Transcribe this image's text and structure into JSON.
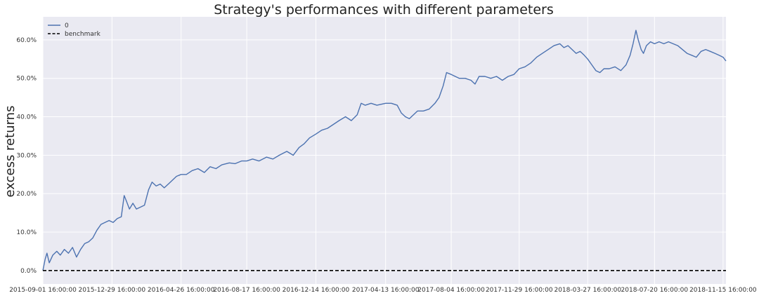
{
  "chart_data": {
    "type": "line",
    "title": "Strategy's performances with different parameters",
    "xlabel": "",
    "ylabel": "excess returns",
    "x_ticks": [
      "2015-09-01 16:00:00",
      "2015-12-29 16:00:00",
      "2016-04-26 16:00:00",
      "2016-08-17 16:00:00",
      "2016-12-14 16:00:00",
      "2017-04-13 16:00:00",
      "2017-08-04 16:00:00",
      "2017-11-29 16:00:00",
      "2018-03-27 16:00:00",
      "2018-07-20 16:00:00",
      "2018-11-15 16:00:00"
    ],
    "y_ticks": [
      "0.0%",
      "10.0%",
      "20.0%",
      "30.0%",
      "40.0%",
      "50.0%",
      "60.0%"
    ],
    "y_tick_values": [
      0,
      10,
      20,
      30,
      40,
      50,
      60
    ],
    "ylim": [
      -3.5,
      66
    ],
    "xlim": [
      "2015-09-01",
      "2018-11-20"
    ],
    "grid": true,
    "legend_position": "top-left",
    "background_color": "#EAEAF2",
    "series": [
      {
        "name": "0",
        "color": "#4C72B0",
        "style": "solid",
        "points": [
          [
            "2015-09-01",
            0.0
          ],
          [
            "2015-09-05",
            3.0
          ],
          [
            "2015-09-08",
            4.5
          ],
          [
            "2015-09-12",
            2.0
          ],
          [
            "2015-09-18",
            4.0
          ],
          [
            "2015-09-25",
            5.0
          ],
          [
            "2015-10-01",
            4.0
          ],
          [
            "2015-10-08",
            5.5
          ],
          [
            "2015-10-15",
            4.5
          ],
          [
            "2015-10-22",
            6.0
          ],
          [
            "2015-10-29",
            3.5
          ],
          [
            "2015-11-05",
            5.5
          ],
          [
            "2015-11-12",
            7.0
          ],
          [
            "2015-11-19",
            7.5
          ],
          [
            "2015-11-26",
            8.5
          ],
          [
            "2015-12-03",
            10.5
          ],
          [
            "2015-12-10",
            12.0
          ],
          [
            "2015-12-17",
            12.5
          ],
          [
            "2015-12-24",
            13.0
          ],
          [
            "2015-12-31",
            12.5
          ],
          [
            "2016-01-07",
            13.5
          ],
          [
            "2016-01-14",
            14.0
          ],
          [
            "2016-01-19",
            19.5
          ],
          [
            "2016-01-23",
            18.0
          ],
          [
            "2016-01-28",
            16.0
          ],
          [
            "2016-02-03",
            17.5
          ],
          [
            "2016-02-09",
            16.0
          ],
          [
            "2016-02-16",
            16.5
          ],
          [
            "2016-02-23",
            17.0
          ],
          [
            "2016-03-01",
            21.0
          ],
          [
            "2016-03-07",
            23.0
          ],
          [
            "2016-03-14",
            22.0
          ],
          [
            "2016-03-21",
            22.5
          ],
          [
            "2016-03-28",
            21.5
          ],
          [
            "2016-04-04",
            22.5
          ],
          [
            "2016-04-11",
            23.5
          ],
          [
            "2016-04-18",
            24.5
          ],
          [
            "2016-04-26",
            25.0
          ],
          [
            "2016-05-05",
            25.0
          ],
          [
            "2016-05-15",
            26.0
          ],
          [
            "2016-05-25",
            26.5
          ],
          [
            "2016-06-05",
            25.5
          ],
          [
            "2016-06-15",
            27.0
          ],
          [
            "2016-06-25",
            26.5
          ],
          [
            "2016-07-05",
            27.5
          ],
          [
            "2016-07-18",
            28.0
          ],
          [
            "2016-07-28",
            27.8
          ],
          [
            "2016-08-08",
            28.5
          ],
          [
            "2016-08-17",
            28.5
          ],
          [
            "2016-08-27",
            29.0
          ],
          [
            "2016-09-07",
            28.5
          ],
          [
            "2016-09-20",
            29.5
          ],
          [
            "2016-10-01",
            29.0
          ],
          [
            "2016-10-12",
            30.0
          ],
          [
            "2016-10-25",
            31.0
          ],
          [
            "2016-11-05",
            30.0
          ],
          [
            "2016-11-15",
            32.0
          ],
          [
            "2016-11-24",
            33.0
          ],
          [
            "2016-12-03",
            34.5
          ],
          [
            "2016-12-14",
            35.5
          ],
          [
            "2016-12-24",
            36.5
          ],
          [
            "2017-01-03",
            37.0
          ],
          [
            "2017-01-13",
            38.0
          ],
          [
            "2017-01-23",
            39.0
          ],
          [
            "2017-02-03",
            40.0
          ],
          [
            "2017-02-13",
            39.0
          ],
          [
            "2017-02-23",
            40.5
          ],
          [
            "2017-03-02",
            43.5
          ],
          [
            "2017-03-09",
            43.0
          ],
          [
            "2017-03-19",
            43.5
          ],
          [
            "2017-03-29",
            43.0
          ],
          [
            "2017-04-13",
            43.5
          ],
          [
            "2017-04-23",
            43.5
          ],
          [
            "2017-05-03",
            43.0
          ],
          [
            "2017-05-10",
            41.0
          ],
          [
            "2017-05-17",
            40.0
          ],
          [
            "2017-05-24",
            39.5
          ],
          [
            "2017-05-31",
            40.5
          ],
          [
            "2017-06-07",
            41.5
          ],
          [
            "2017-06-17",
            41.5
          ],
          [
            "2017-06-27",
            42.0
          ],
          [
            "2017-07-07",
            43.5
          ],
          [
            "2017-07-14",
            45.0
          ],
          [
            "2017-07-21",
            48.0
          ],
          [
            "2017-07-27",
            51.5
          ],
          [
            "2017-08-04",
            51.0
          ],
          [
            "2017-08-11",
            50.5
          ],
          [
            "2017-08-18",
            50.0
          ],
          [
            "2017-08-28",
            50.0
          ],
          [
            "2017-09-07",
            49.5
          ],
          [
            "2017-09-14",
            48.5
          ],
          [
            "2017-09-21",
            50.5
          ],
          [
            "2017-10-01",
            50.5
          ],
          [
            "2017-10-11",
            50.0
          ],
          [
            "2017-10-21",
            50.5
          ],
          [
            "2017-10-31",
            49.5
          ],
          [
            "2017-11-10",
            50.5
          ],
          [
            "2017-11-20",
            51.0
          ],
          [
            "2017-11-29",
            52.5
          ],
          [
            "2017-12-09",
            53.0
          ],
          [
            "2017-12-19",
            54.0
          ],
          [
            "2017-12-29",
            55.5
          ],
          [
            "2018-01-08",
            56.5
          ],
          [
            "2018-01-18",
            57.5
          ],
          [
            "2018-01-28",
            58.5
          ],
          [
            "2018-02-07",
            59.0
          ],
          [
            "2018-02-14",
            58.0
          ],
          [
            "2018-02-21",
            58.5
          ],
          [
            "2018-02-28",
            57.5
          ],
          [
            "2018-03-07",
            56.5
          ],
          [
            "2018-03-14",
            57.0
          ],
          [
            "2018-03-21",
            56.0
          ],
          [
            "2018-03-27",
            55.0
          ],
          [
            "2018-04-03",
            53.5
          ],
          [
            "2018-04-10",
            52.0
          ],
          [
            "2018-04-17",
            51.5
          ],
          [
            "2018-04-24",
            52.5
          ],
          [
            "2018-05-03",
            52.5
          ],
          [
            "2018-05-13",
            53.0
          ],
          [
            "2018-05-23",
            52.0
          ],
          [
            "2018-06-01",
            53.5
          ],
          [
            "2018-06-08",
            56.0
          ],
          [
            "2018-06-13",
            59.0
          ],
          [
            "2018-06-18",
            62.5
          ],
          [
            "2018-06-22",
            60.0
          ],
          [
            "2018-06-27",
            57.5
          ],
          [
            "2018-07-01",
            56.5
          ],
          [
            "2018-07-06",
            58.5
          ],
          [
            "2018-07-13",
            59.5
          ],
          [
            "2018-07-20",
            59.0
          ],
          [
            "2018-07-28",
            59.5
          ],
          [
            "2018-08-05",
            59.0
          ],
          [
            "2018-08-13",
            59.5
          ],
          [
            "2018-08-21",
            59.0
          ],
          [
            "2018-08-29",
            58.5
          ],
          [
            "2018-09-06",
            57.5
          ],
          [
            "2018-09-14",
            56.5
          ],
          [
            "2018-09-22",
            56.0
          ],
          [
            "2018-09-30",
            55.5
          ],
          [
            "2018-10-08",
            57.0
          ],
          [
            "2018-10-16",
            57.5
          ],
          [
            "2018-10-24",
            57.0
          ],
          [
            "2018-11-01",
            56.5
          ],
          [
            "2018-11-08",
            56.0
          ],
          [
            "2018-11-15",
            55.5
          ],
          [
            "2018-11-20",
            54.5
          ]
        ]
      },
      {
        "name": "benchmark",
        "color": "#000000",
        "style": "dashed",
        "points": [
          [
            "2015-09-01",
            0.0
          ],
          [
            "2018-11-20",
            0.0
          ]
        ]
      }
    ]
  }
}
